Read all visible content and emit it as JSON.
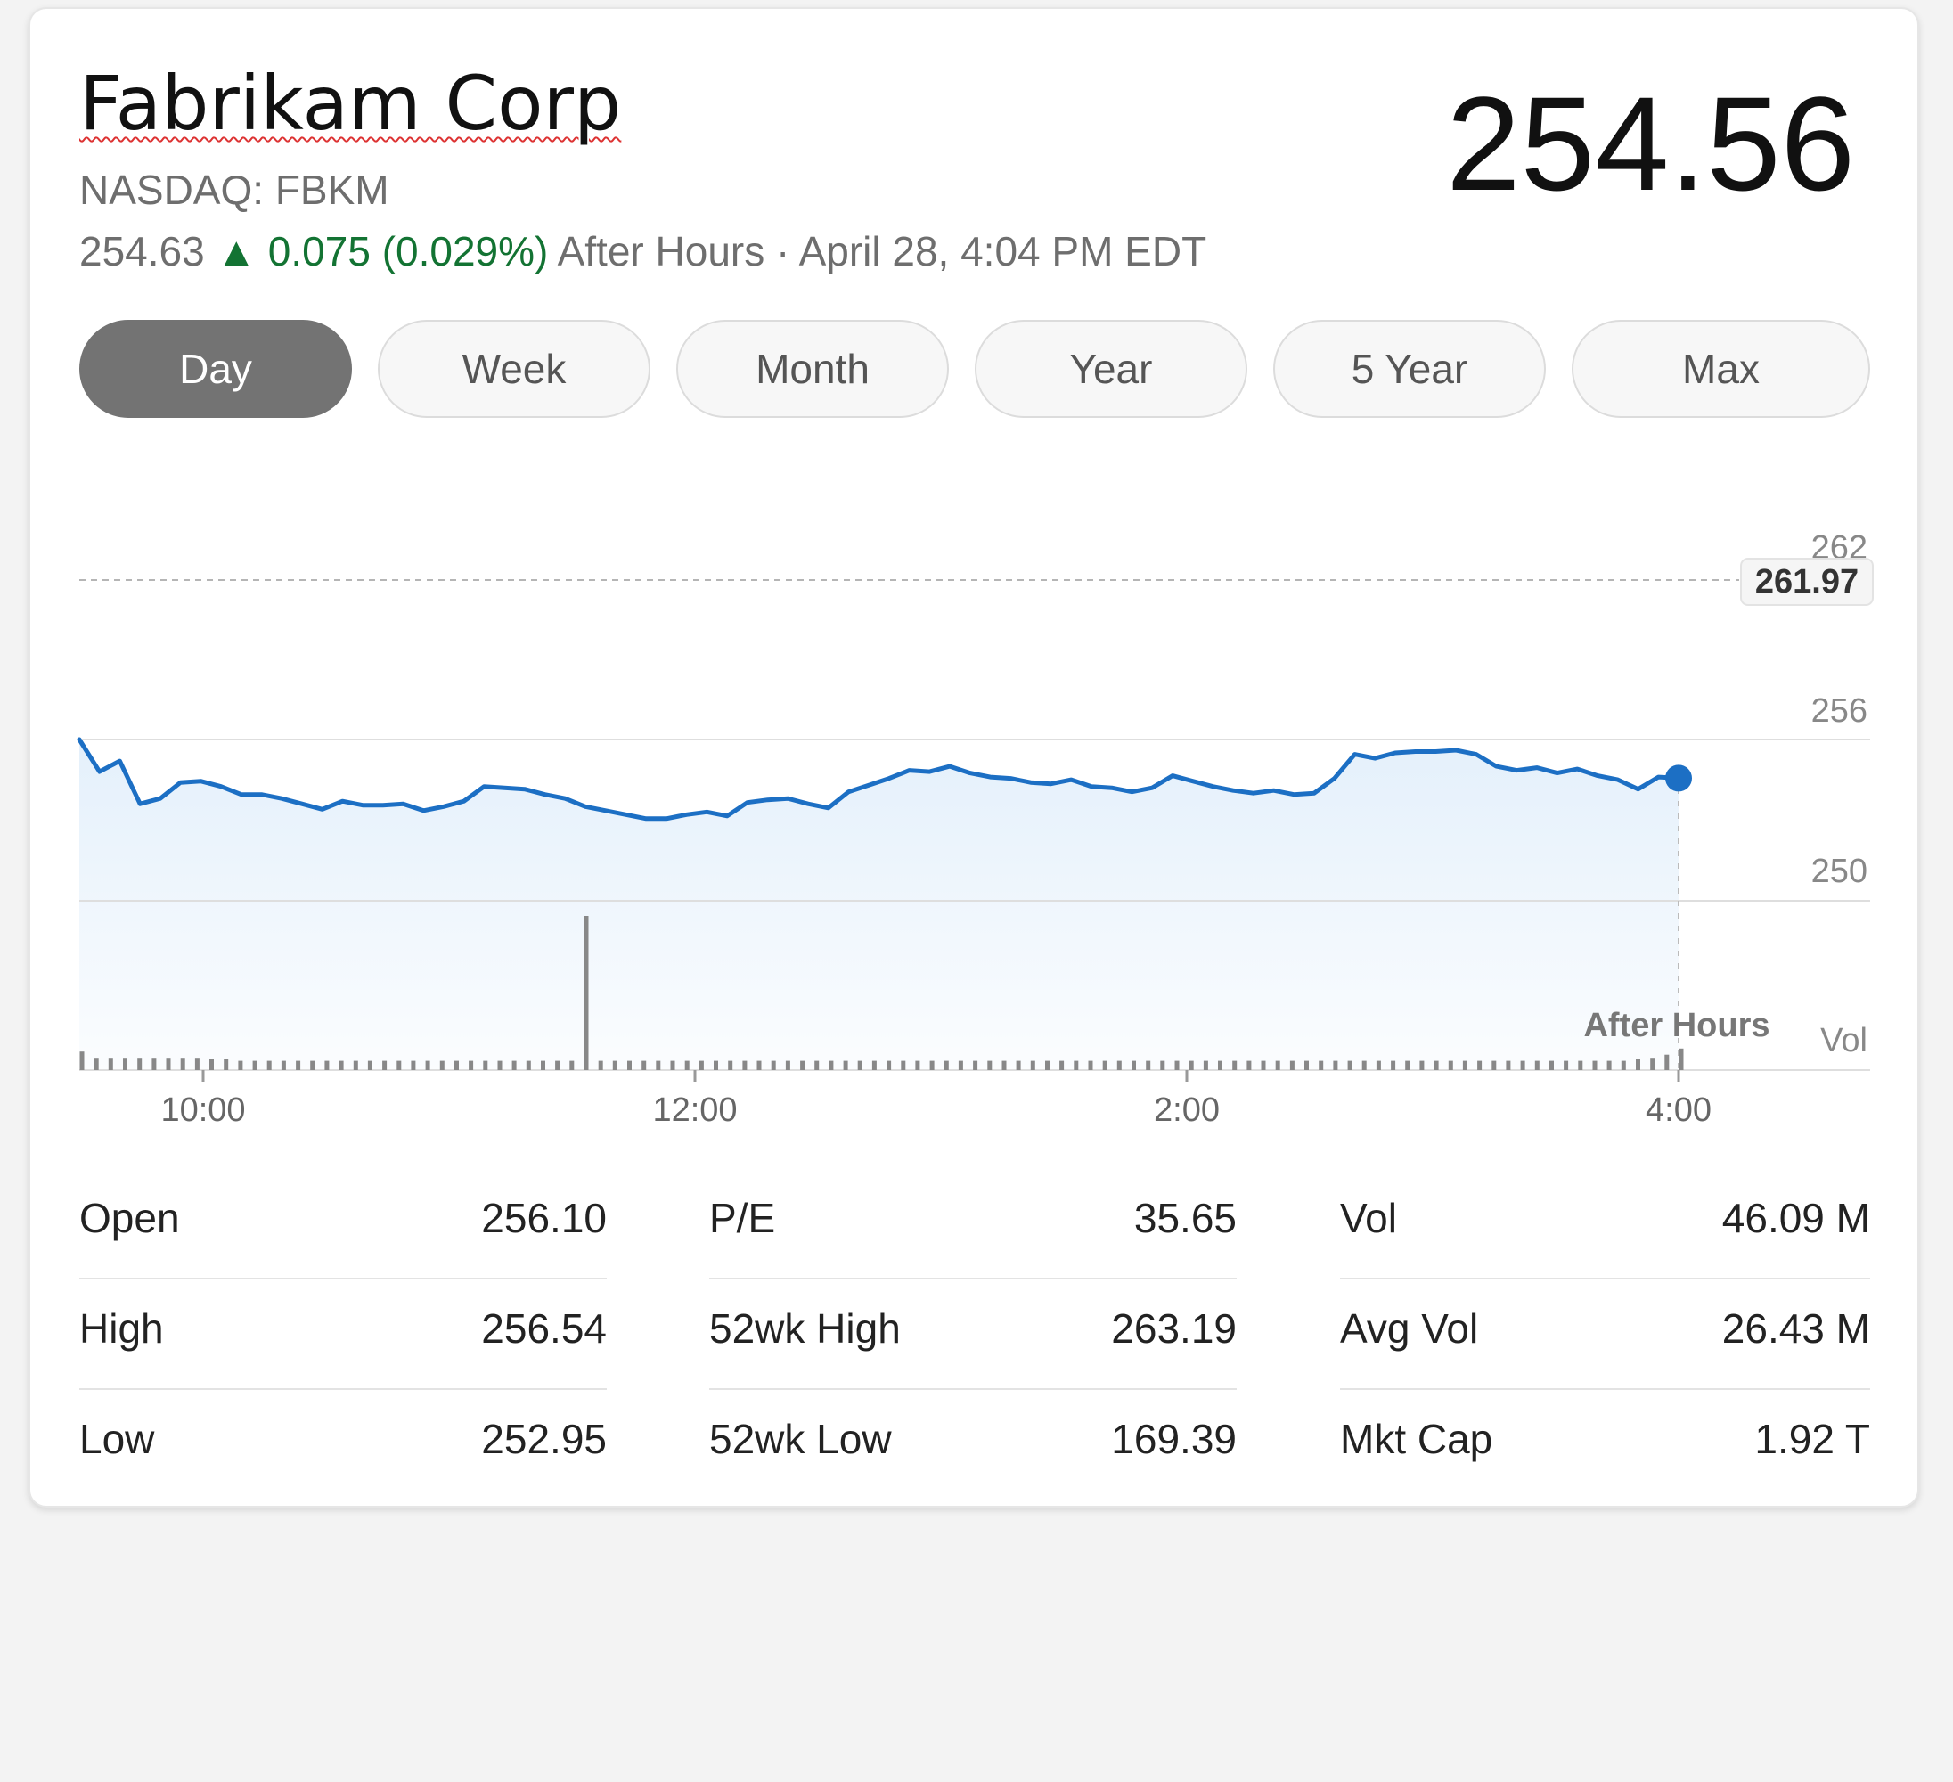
{
  "header": {
    "company": "Fabrikam Corp",
    "ticker": "NASDAQ: FBKM",
    "price": "254.56",
    "after_hours_price": "254.63",
    "change_arrow": "▲",
    "change": "0.075 (0.029%)",
    "after_hours_label": "After Hours · April 28, 4:04 PM EDT"
  },
  "tabs": [
    {
      "label": "Day",
      "active": true
    },
    {
      "label": "Week",
      "active": false
    },
    {
      "label": "Month",
      "active": false
    },
    {
      "label": "Year",
      "active": false
    },
    {
      "label": "5 Year",
      "active": false
    },
    {
      "label": "Max",
      "active": false
    }
  ],
  "chart_data": {
    "type": "line",
    "x_ticks": [
      "10:00",
      "12:00",
      "2:00",
      "4:00"
    ],
    "y_ticks": [
      262,
      256,
      250
    ],
    "ylim": [
      244,
      264
    ],
    "reference_line": {
      "value": 261.97,
      "label": "261.97"
    },
    "after_hours_label": "After Hours",
    "volume_label": "Vol",
    "colors": {
      "line": "#1c6fc4",
      "fill": "#e4f0fb",
      "reference": "#b5b5b5"
    },
    "series": [
      {
        "values": [
          256.0,
          254.8,
          255.2,
          253.6,
          253.8,
          254.4,
          254.45,
          254.25,
          253.95,
          253.95,
          253.8,
          253.6,
          253.4,
          253.7,
          253.55,
          253.55,
          253.6,
          253.35,
          253.5,
          253.7,
          254.25,
          254.2,
          254.15,
          253.95,
          253.8,
          253.5,
          253.35,
          253.2,
          253.05,
          253.05,
          253.2,
          253.3,
          253.15,
          253.65,
          253.75,
          253.8,
          253.6,
          253.45,
          254.05,
          254.3,
          254.55,
          254.85,
          254.8,
          255.0,
          254.75,
          254.6,
          254.55,
          254.4,
          254.35,
          254.5,
          254.25,
          254.2,
          254.05,
          254.2,
          254.65,
          254.45,
          254.25,
          254.1,
          254.0,
          254.1,
          253.95,
          254.0,
          254.55,
          255.45,
          255.3,
          255.5,
          255.55,
          255.55,
          255.6,
          255.45,
          255.0,
          254.85,
          254.95,
          254.75,
          254.9,
          254.65,
          254.5,
          254.15,
          254.6,
          254.56
        ]
      }
    ],
    "volume": [
      12,
      8,
      8,
      8,
      8,
      8,
      8,
      8,
      8,
      7,
      7,
      6,
      6,
      6,
      6,
      6,
      6,
      6,
      6,
      6,
      6,
      6,
      6,
      6,
      6,
      6,
      6,
      6,
      6,
      6,
      6,
      6,
      6,
      6,
      6,
      100,
      6,
      6,
      6,
      6,
      6,
      6,
      6,
      6,
      6,
      6,
      6,
      6,
      6,
      6,
      6,
      6,
      6,
      6,
      6,
      6,
      6,
      6,
      6,
      6,
      6,
      6,
      6,
      6,
      6,
      6,
      6,
      6,
      6,
      6,
      6,
      6,
      6,
      6,
      6,
      6,
      6,
      6,
      6,
      6,
      6,
      6,
      6,
      6,
      6,
      6,
      6,
      6,
      6,
      6,
      6,
      6,
      6,
      6,
      6,
      6,
      6,
      6,
      6,
      6,
      6,
      6,
      6,
      6,
      6,
      6,
      6,
      6,
      7,
      8,
      10,
      14
    ]
  },
  "stats": [
    [
      {
        "label": "Open",
        "value": "256.10"
      },
      {
        "label": "High",
        "value": "256.54"
      },
      {
        "label": "Low",
        "value": "252.95"
      }
    ],
    [
      {
        "label": "P/E",
        "value": "35.65"
      },
      {
        "label": "52wk High",
        "value": "263.19"
      },
      {
        "label": "52wk Low",
        "value": "169.39"
      }
    ],
    [
      {
        "label": "Vol",
        "value": "46.09 M"
      },
      {
        "label": "Avg Vol",
        "value": "26.43 M"
      },
      {
        "label": "Mkt Cap",
        "value": "1.92 T"
      }
    ]
  ]
}
